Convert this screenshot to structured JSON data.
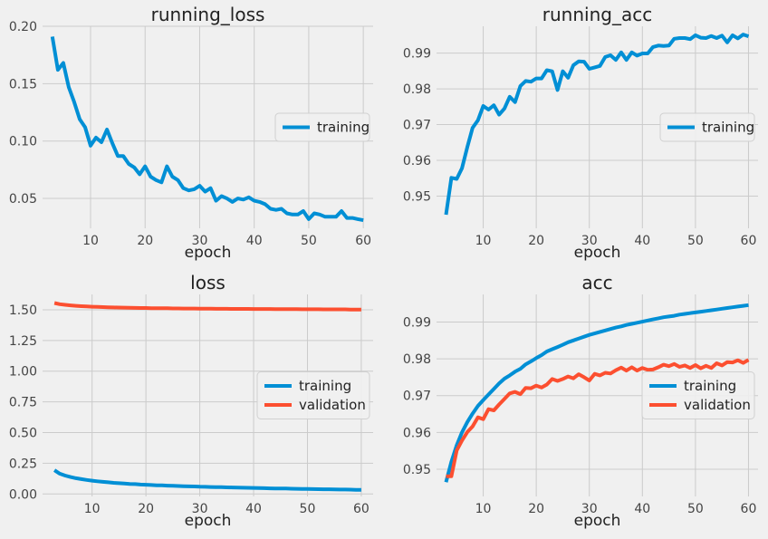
{
  "colors": {
    "training": "#008fd5",
    "validation": "#fc4f30",
    "background": "#f0f0f0",
    "grid": "#cbcbcb"
  },
  "chart_data": [
    {
      "id": "running_loss",
      "type": "line",
      "title": "running_loss",
      "xlabel": "epoch",
      "ylabel": "",
      "xlim": [
        1.2,
        61.8
      ],
      "ylim": [
        0.024,
        0.2
      ],
      "xticks": [
        10,
        20,
        30,
        40,
        50,
        60
      ],
      "yticks": [
        0.05,
        0.1,
        0.15,
        0.2
      ],
      "ytick_labels": [
        "0.05",
        "0.10",
        "0.15",
        "0.20"
      ],
      "grid": true,
      "legend_position": "center-right",
      "series": [
        {
          "name": "training",
          "x": [
            3,
            4,
            5,
            6,
            7,
            8,
            9,
            10,
            11,
            12,
            13,
            14,
            15,
            16,
            17,
            18,
            19,
            20,
            21,
            22,
            23,
            24,
            25,
            26,
            27,
            28,
            29,
            30,
            31,
            32,
            33,
            34,
            35,
            36,
            37,
            38,
            39,
            40,
            41,
            42,
            43,
            44,
            45,
            46,
            47,
            48,
            49,
            50,
            51,
            52,
            53,
            54,
            55,
            56,
            57,
            58,
            59,
            60
          ],
          "values": [
            0.191,
            0.162,
            0.168,
            0.147,
            0.134,
            0.119,
            0.112,
            0.096,
            0.103,
            0.099,
            0.11,
            0.098,
            0.087,
            0.087,
            0.08,
            0.077,
            0.071,
            0.078,
            0.069,
            0.066,
            0.064,
            0.078,
            0.069,
            0.066,
            0.059,
            0.057,
            0.058,
            0.061,
            0.056,
            0.059,
            0.048,
            0.052,
            0.05,
            0.047,
            0.05,
            0.049,
            0.051,
            0.048,
            0.047,
            0.045,
            0.041,
            0.04,
            0.041,
            0.037,
            0.036,
            0.036,
            0.039,
            0.032,
            0.037,
            0.036,
            0.034,
            0.034,
            0.034,
            0.039,
            0.033,
            0.033,
            0.032,
            0.031
          ]
        }
      ]
    },
    {
      "id": "running_acc",
      "type": "line",
      "title": "running_acc",
      "xlabel": "epoch",
      "ylabel": "",
      "xlim": [
        1.2,
        61.8
      ],
      "ylim": [
        0.941,
        0.9975
      ],
      "xticks": [
        10,
        20,
        30,
        40,
        50,
        60
      ],
      "yticks": [
        0.95,
        0.96,
        0.97,
        0.98,
        0.99
      ],
      "ytick_labels": [
        "0.95",
        "0.96",
        "0.97",
        "0.98",
        "0.99"
      ],
      "grid": true,
      "legend_position": "center-right",
      "series": [
        {
          "name": "training",
          "x": [
            3,
            4,
            5,
            6,
            7,
            8,
            9,
            10,
            11,
            12,
            13,
            14,
            15,
            16,
            17,
            18,
            19,
            20,
            21,
            22,
            23,
            24,
            25,
            26,
            27,
            28,
            29,
            30,
            31,
            32,
            33,
            34,
            35,
            36,
            37,
            38,
            39,
            40,
            41,
            42,
            43,
            44,
            45,
            46,
            47,
            48,
            49,
            50,
            51,
            52,
            53,
            54,
            55,
            56,
            57,
            58,
            59,
            60
          ],
          "values": [
            0.9448,
            0.9551,
            0.9548,
            0.9578,
            0.9637,
            0.9691,
            0.9712,
            0.9752,
            0.9742,
            0.9754,
            0.9728,
            0.9745,
            0.9778,
            0.9763,
            0.9808,
            0.9822,
            0.982,
            0.9829,
            0.9829,
            0.9852,
            0.9849,
            0.9797,
            0.9849,
            0.9831,
            0.9866,
            0.9877,
            0.9876,
            0.9856,
            0.986,
            0.9864,
            0.9889,
            0.9894,
            0.9881,
            0.9902,
            0.9881,
            0.9902,
            0.9893,
            0.9899,
            0.9899,
            0.9917,
            0.9921,
            0.992,
            0.9921,
            0.994,
            0.9942,
            0.9942,
            0.9939,
            0.995,
            0.9943,
            0.9942,
            0.9948,
            0.9942,
            0.9949,
            0.993,
            0.995,
            0.9941,
            0.9952,
            0.9947
          ]
        }
      ]
    },
    {
      "id": "loss",
      "type": "line",
      "title": "loss",
      "xlabel": "epoch",
      "ylabel": "",
      "xlim": [
        0.8,
        62.2
      ],
      "ylim": [
        -0.02,
        1.625
      ],
      "xticks": [
        10,
        20,
        30,
        40,
        50,
        60
      ],
      "yticks": [
        0.0,
        0.25,
        0.5,
        0.75,
        1.0,
        1.25,
        1.5
      ],
      "ytick_labels": [
        "0.00",
        "0.25",
        "0.50",
        "0.75",
        "1.00",
        "1.25",
        "1.50"
      ],
      "grid": true,
      "legend_position": "center-right",
      "series": [
        {
          "name": "training",
          "x": [
            3,
            4,
            5,
            6,
            7,
            8,
            9,
            10,
            11,
            12,
            13,
            14,
            15,
            16,
            17,
            18,
            19,
            20,
            21,
            22,
            23,
            24,
            25,
            26,
            27,
            28,
            29,
            30,
            31,
            32,
            33,
            34,
            35,
            36,
            37,
            38,
            39,
            40,
            41,
            42,
            43,
            44,
            45,
            46,
            47,
            48,
            49,
            50,
            51,
            52,
            53,
            54,
            55,
            56,
            57,
            58,
            59,
            60
          ],
          "values": [
            0.193,
            0.165,
            0.15,
            0.138,
            0.128,
            0.121,
            0.114,
            0.108,
            0.103,
            0.099,
            0.095,
            0.091,
            0.088,
            0.085,
            0.082,
            0.08,
            0.077,
            0.075,
            0.073,
            0.071,
            0.07,
            0.068,
            0.066,
            0.065,
            0.063,
            0.062,
            0.061,
            0.059,
            0.058,
            0.057,
            0.056,
            0.055,
            0.054,
            0.053,
            0.052,
            0.051,
            0.05,
            0.049,
            0.048,
            0.047,
            0.046,
            0.045,
            0.045,
            0.044,
            0.043,
            0.042,
            0.041,
            0.041,
            0.04,
            0.039,
            0.038,
            0.038,
            0.037,
            0.036,
            0.036,
            0.035,
            0.034,
            0.034
          ]
        },
        {
          "name": "validation",
          "x": [
            3,
            4,
            5,
            6,
            7,
            8,
            9,
            10,
            11,
            12,
            13,
            14,
            15,
            16,
            17,
            18,
            19,
            20,
            21,
            22,
            23,
            24,
            25,
            26,
            27,
            28,
            29,
            30,
            31,
            32,
            33,
            34,
            35,
            36,
            37,
            38,
            39,
            40,
            41,
            42,
            43,
            44,
            45,
            46,
            47,
            48,
            49,
            50,
            51,
            52,
            53,
            54,
            55,
            56,
            57,
            58,
            59,
            60
          ],
          "values": [
            1.555,
            1.545,
            1.54,
            1.536,
            1.532,
            1.529,
            1.527,
            1.525,
            1.523,
            1.522,
            1.52,
            1.519,
            1.518,
            1.517,
            1.516,
            1.515,
            1.514,
            1.514,
            1.513,
            1.513,
            1.512,
            1.512,
            1.511,
            1.511,
            1.51,
            1.51,
            1.51,
            1.509,
            1.509,
            1.509,
            1.508,
            1.508,
            1.508,
            1.507,
            1.507,
            1.507,
            1.507,
            1.506,
            1.506,
            1.506,
            1.506,
            1.505,
            1.505,
            1.505,
            1.505,
            1.505,
            1.504,
            1.504,
            1.504,
            1.504,
            1.503,
            1.503,
            1.503,
            1.503,
            1.503,
            1.502,
            1.502,
            1.502
          ]
        }
      ]
    },
    {
      "id": "acc",
      "type": "line",
      "title": "acc",
      "xlabel": "epoch",
      "ylabel": "",
      "xlim": [
        1.2,
        61.8
      ],
      "ylim": [
        0.9426,
        0.9975
      ],
      "xticks": [
        10,
        20,
        30,
        40,
        50,
        60
      ],
      "yticks": [
        0.95,
        0.96,
        0.97,
        0.98,
        0.99
      ],
      "ytick_labels": [
        "0.95",
        "0.96",
        "0.97",
        "0.98",
        "0.99"
      ],
      "grid": true,
      "legend_position": "center-right",
      "series": [
        {
          "name": "training",
          "x": [
            3,
            4,
            5,
            6,
            7,
            8,
            9,
            10,
            11,
            12,
            13,
            14,
            15,
            16,
            17,
            18,
            19,
            20,
            21,
            22,
            23,
            24,
            25,
            26,
            27,
            28,
            29,
            30,
            31,
            32,
            33,
            34,
            35,
            36,
            37,
            38,
            39,
            40,
            41,
            42,
            43,
            44,
            45,
            46,
            47,
            48,
            49,
            50,
            51,
            52,
            53,
            54,
            55,
            56,
            57,
            58,
            59,
            60
          ],
          "values": [
            0.9465,
            0.952,
            0.9565,
            0.96,
            0.9628,
            0.9651,
            0.9672,
            0.9688,
            0.9703,
            0.9718,
            0.9733,
            0.9746,
            0.9755,
            0.9765,
            0.9773,
            0.9785,
            0.9793,
            0.9802,
            0.981,
            0.982,
            0.9826,
            0.9832,
            0.9838,
            0.9845,
            0.985,
            0.9855,
            0.986,
            0.9865,
            0.9869,
            0.9873,
            0.9877,
            0.9881,
            0.9885,
            0.9888,
            0.9892,
            0.9895,
            0.9898,
            0.9901,
            0.9904,
            0.9907,
            0.991,
            0.9913,
            0.9915,
            0.9917,
            0.992,
            0.9922,
            0.9924,
            0.9926,
            0.9928,
            0.993,
            0.9932,
            0.9934,
            0.9936,
            0.9938,
            0.994,
            0.9942,
            0.9944,
            0.9946
          ]
        },
        {
          "name": "validation",
          "x": [
            3,
            4,
            5,
            6,
            7,
            8,
            9,
            10,
            11,
            12,
            13,
            14,
            15,
            16,
            17,
            18,
            19,
            20,
            21,
            22,
            23,
            24,
            25,
            26,
            27,
            28,
            29,
            30,
            31,
            32,
            33,
            34,
            35,
            36,
            37,
            38,
            39,
            40,
            41,
            42,
            43,
            44,
            45,
            46,
            47,
            48,
            49,
            50,
            51,
            52,
            53,
            54,
            55,
            56,
            57,
            58,
            59,
            60
          ],
          "values": [
            0.9481,
            0.9481,
            0.9551,
            0.9578,
            0.9601,
            0.9616,
            0.9641,
            0.9636,
            0.9663,
            0.966,
            0.9676,
            0.9691,
            0.9706,
            0.971,
            0.9704,
            0.9721,
            0.972,
            0.9727,
            0.9722,
            0.973,
            0.9745,
            0.974,
            0.9745,
            0.9752,
            0.9747,
            0.9758,
            0.975,
            0.9741,
            0.9759,
            0.9755,
            0.9762,
            0.976,
            0.9769,
            0.9776,
            0.9768,
            0.9777,
            0.9768,
            0.9775,
            0.977,
            0.9771,
            0.9777,
            0.9784,
            0.978,
            0.9786,
            0.9778,
            0.9782,
            0.9775,
            0.9783,
            0.9774,
            0.9781,
            0.9775,
            0.9788,
            0.9782,
            0.9791,
            0.979,
            0.9796,
            0.9789,
            0.9797
          ]
        }
      ]
    }
  ]
}
